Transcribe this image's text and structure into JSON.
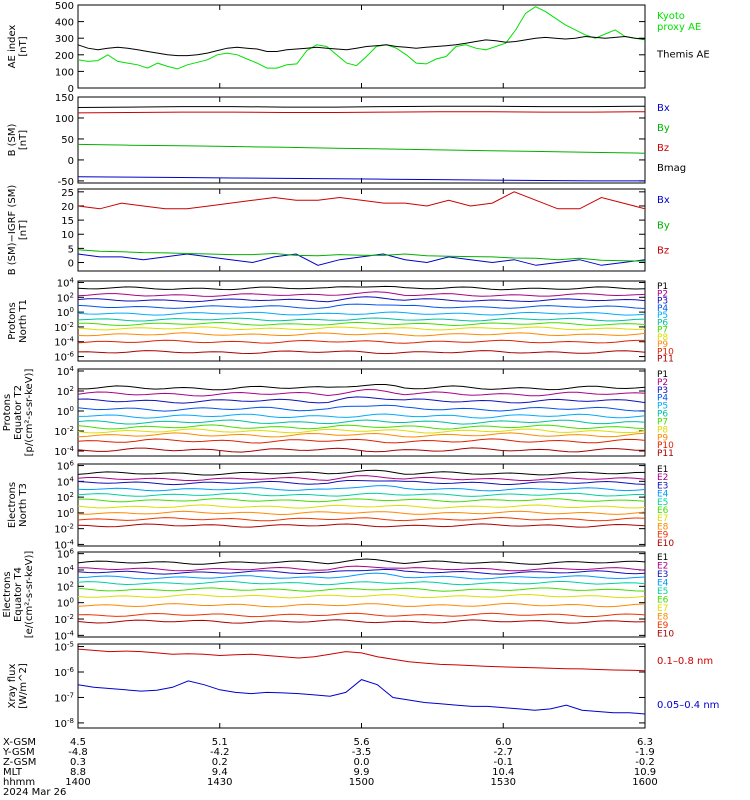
{
  "chart_data": [
    {
      "type": "line",
      "ylabel": "AE index\n[nT]",
      "ylim": [
        0,
        500
      ],
      "yscale": "linear",
      "yticks": [
        "0",
        "100",
        "200",
        "300",
        "400",
        "500"
      ],
      "yticks_v": [
        0,
        100,
        200,
        300,
        400,
        500
      ],
      "series": [
        {
          "name": "Kyoto\nproxy AE",
          "color": "#00e000",
          "values": [
            170,
            160,
            165,
            200,
            160,
            150,
            140,
            120,
            150,
            130,
            115,
            140,
            155,
            170,
            200,
            210,
            200,
            175,
            150,
            120,
            120,
            140,
            145,
            225,
            260,
            250,
            200,
            150,
            135,
            190,
            250,
            260,
            240,
            200,
            150,
            145,
            175,
            190,
            250,
            260,
            240,
            230,
            250,
            270,
            350,
            450,
            490,
            460,
            420,
            380,
            350,
            320,
            300,
            325,
            350,
            310,
            300,
            290
          ]
        },
        {
          "name": "Themis AE",
          "color": "#000000",
          "values": [
            260,
            240,
            230,
            240,
            245,
            240,
            230,
            220,
            210,
            200,
            195,
            195,
            200,
            210,
            225,
            240,
            245,
            240,
            235,
            220,
            220,
            230,
            235,
            240,
            245,
            240,
            235,
            230,
            240,
            250,
            255,
            260,
            250,
            245,
            240,
            245,
            250,
            255,
            260,
            270,
            280,
            290,
            285,
            275,
            280,
            290,
            300,
            305,
            300,
            295,
            300,
            310,
            305,
            300,
            305,
            310,
            300,
            295
          ]
        }
      ]
    },
    {
      "type": "line",
      "ylabel": "B (SM)\n[nT]",
      "ylim": [
        -55,
        150
      ],
      "yscale": "linear",
      "yticks": [
        "-50",
        "0",
        "50",
        "100",
        "150"
      ],
      "yticks_v": [
        -50,
        0,
        50,
        100,
        150
      ],
      "series": [
        {
          "name": "Bx",
          "color": "#0000cc",
          "values": [
            -40,
            -41,
            -42,
            -43,
            -44,
            -45,
            -46,
            -47,
            -48,
            -49,
            -50,
            -50
          ]
        },
        {
          "name": "By",
          "color": "#00b000",
          "values": [
            37,
            35,
            34,
            32,
            30,
            28,
            26,
            24,
            22,
            20,
            18,
            16
          ]
        },
        {
          "name": "Bz",
          "color": "#cc0000",
          "values": [
            112,
            113,
            114,
            114,
            113,
            113,
            114,
            115,
            115,
            114,
            114,
            115
          ]
        },
        {
          "name": "Bmag",
          "color": "#000000",
          "values": [
            125,
            126,
            127,
            127,
            126,
            126,
            127,
            128,
            128,
            127,
            127,
            128
          ]
        }
      ]
    },
    {
      "type": "line",
      "ylabel": "B (SM)−IGRF (SM)\n[nT]",
      "ylim": [
        -3,
        26
      ],
      "yscale": "linear",
      "yticks": [
        "0",
        "5",
        "10",
        "15",
        "20",
        "25"
      ],
      "yticks_v": [
        0,
        5,
        10,
        15,
        20,
        25
      ],
      "series": [
        {
          "name": "Bx",
          "color": "#0000cc",
          "values": [
            3,
            2,
            2,
            1,
            2,
            3,
            2,
            1,
            0,
            2,
            3,
            -1,
            1,
            2,
            3,
            1,
            0,
            2,
            1,
            0,
            1,
            -1,
            0,
            1,
            -1,
            0,
            1
          ]
        },
        {
          "name": "By",
          "color": "#00b000",
          "values": [
            4.5,
            4,
            3.8,
            3.5,
            3.4,
            3.2,
            3,
            2.8,
            2.8,
            3.2,
            2.5,
            2.4,
            2.8,
            2.6,
            2.5,
            3,
            2.4,
            2.2,
            2.1,
            2,
            1.6,
            1.5,
            1,
            1.5,
            0.8,
            0.6,
            0.5
          ]
        },
        {
          "name": "Bz",
          "color": "#cc0000",
          "values": [
            20,
            19,
            21,
            20,
            19,
            19,
            20,
            21,
            22,
            23,
            22,
            22,
            23,
            22,
            21,
            21,
            20,
            22,
            20,
            21,
            25,
            22,
            19,
            19,
            23,
            21,
            19
          ]
        }
      ]
    },
    {
      "type": "line",
      "ylabel": "Protons\nNorth T1",
      "yscale": "log",
      "ylim": [
        -6.6,
        4.2
      ],
      "yticks": [
        "10^-6",
        "10^-4",
        "10^-2",
        "10^0",
        "10^2",
        "10^4"
      ],
      "yticks_v": [
        -6,
        -4,
        -2,
        0,
        2,
        4
      ],
      "series": [
        {
          "name": "P1",
          "color": "#000000",
          "base": 3.2
        },
        {
          "name": "P2",
          "color": "#aa0088",
          "base": 2.3
        },
        {
          "name": "P3",
          "color": "#1010bb",
          "base": 1.6
        },
        {
          "name": "P4",
          "color": "#0055ee",
          "base": 0.7
        },
        {
          "name": "P5",
          "color": "#00aaff",
          "base": -0.2
        },
        {
          "name": "P6",
          "color": "#00c0a0",
          "base": -1.0
        },
        {
          "name": "P7",
          "color": "#44dd00",
          "base": -1.6
        },
        {
          "name": "P8",
          "color": "#dddd00",
          "base": -2.2
        },
        {
          "name": "P9",
          "color": "#ff8800",
          "base": -3.0
        },
        {
          "name": "P10",
          "color": "#dd2200",
          "base": -4.0
        },
        {
          "name": "P11",
          "color": "#aa0000",
          "base": -5.4
        }
      ]
    },
    {
      "type": "line",
      "ylabel": "Protons\nEquator T2\n[p/(cm²-s-sr-keV)]",
      "yscale": "log",
      "ylim": [
        -4.5,
        4.2
      ],
      "yticks": [
        "10^-4",
        "10^-2",
        "10^0",
        "10^2",
        "10^4"
      ],
      "yticks_v": [
        -4,
        -2,
        0,
        2,
        4
      ],
      "series": [
        {
          "name": "P1",
          "color": "#000000",
          "base": 2.3
        },
        {
          "name": "P2",
          "color": "#aa0088",
          "base": 1.7
        },
        {
          "name": "P3",
          "color": "#1010bb",
          "base": 1.0
        },
        {
          "name": "P4",
          "color": "#0055ee",
          "base": 0.2
        },
        {
          "name": "P5",
          "color": "#00aaff",
          "base": -0.5
        },
        {
          "name": "P6",
          "color": "#00c0a0",
          "base": -1.1
        },
        {
          "name": "P7",
          "color": "#44dd00",
          "base": -1.6
        },
        {
          "name": "P8",
          "color": "#dddd00",
          "base": -2.0
        },
        {
          "name": "P9",
          "color": "#ff8800",
          "base": -2.4
        },
        {
          "name": "P10",
          "color": "#dd2200",
          "base": -3.0
        },
        {
          "name": "P11",
          "color": "#aa0000",
          "base": -3.9
        }
      ]
    },
    {
      "type": "line",
      "ylabel": "Electrons\nNorth T3",
      "yscale": "log",
      "ylim": [
        -4.2,
        6.2
      ],
      "yticks": [
        "10^-4",
        "10^-2",
        "10^0",
        "10^2",
        "10^4",
        "10^6"
      ],
      "yticks_v": [
        -4,
        -2,
        0,
        2,
        4,
        6
      ],
      "series": [
        {
          "name": "E1",
          "color": "#000000",
          "base": 5.0
        },
        {
          "name": "E2",
          "color": "#aa0088",
          "base": 4.3
        },
        {
          "name": "E3",
          "color": "#1010bb",
          "base": 3.8
        },
        {
          "name": "E4",
          "color": "#0099ff",
          "base": 3.0
        },
        {
          "name": "E5",
          "color": "#00d0a0",
          "base": 2.3
        },
        {
          "name": "E6",
          "color": "#44dd00",
          "base": 1.6
        },
        {
          "name": "E7",
          "color": "#dddd00",
          "base": 0.8
        },
        {
          "name": "E8",
          "color": "#ff8800",
          "base": 0.0
        },
        {
          "name": "E9",
          "color": "#ee3300",
          "base": -0.8
        },
        {
          "name": "E10",
          "color": "#aa0000",
          "base": -1.6
        }
      ]
    },
    {
      "type": "line",
      "ylabel": "Electrons\nEquator T4\n[e/(cm²-s-sr-keV)]",
      "yscale": "log",
      "ylim": [
        -4.2,
        6.2
      ],
      "yticks": [
        "10^-4",
        "10^-2",
        "10^0",
        "10^2",
        "10^4",
        "10^6"
      ],
      "yticks_v": [
        -4,
        -2,
        0,
        2,
        4,
        6
      ],
      "series": [
        {
          "name": "E1",
          "color": "#000000",
          "base": 4.9
        },
        {
          "name": "E2",
          "color": "#aa0088",
          "base": 4.1
        },
        {
          "name": "E3",
          "color": "#1010bb",
          "base": 3.7
        },
        {
          "name": "E4",
          "color": "#0099ff",
          "base": 3.1
        },
        {
          "name": "E5",
          "color": "#00d0a0",
          "base": 2.4
        },
        {
          "name": "E6",
          "color": "#44dd00",
          "base": 1.6
        },
        {
          "name": "E7",
          "color": "#dddd00",
          "base": 0.8
        },
        {
          "name": "E8",
          "color": "#ff8800",
          "base": -0.3
        },
        {
          "name": "E9",
          "color": "#ee3300",
          "base": -1.5
        },
        {
          "name": "E10",
          "color": "#aa0000",
          "base": -2.3
        }
      ]
    },
    {
      "type": "line",
      "ylabel": "Xray flux\n[W/m^2]",
      "yscale": "log",
      "ylim": [
        -8.2,
        -4.9
      ],
      "yticks": [
        "10^-8",
        "10^-7",
        "10^-6",
        "10^-5"
      ],
      "yticks_v": [
        -8,
        -7,
        -6,
        -5
      ],
      "series": [
        {
          "name": "0.1–0.8 nm",
          "color": "#cc0000",
          "values": [
            -5.1,
            -5.15,
            -5.2,
            -5.18,
            -5.2,
            -5.25,
            -5.3,
            -5.28,
            -5.3,
            -5.35,
            -5.32,
            -5.3,
            -5.35,
            -5.4,
            -5.45,
            -5.4,
            -5.3,
            -5.2,
            -5.25,
            -5.4,
            -5.5,
            -5.6,
            -5.65,
            -5.7,
            -5.72,
            -5.75,
            -5.78,
            -5.8,
            -5.82,
            -5.83,
            -5.85,
            -5.87,
            -5.88,
            -5.9,
            -5.92,
            -5.93,
            -5.95
          ]
        },
        {
          "name": "0.05–0.4 nm",
          "color": "#0000cc",
          "values": [
            -6.5,
            -6.6,
            -6.65,
            -6.7,
            -6.75,
            -6.72,
            -6.6,
            -6.35,
            -6.5,
            -6.7,
            -6.8,
            -6.85,
            -6.8,
            -6.82,
            -6.85,
            -6.9,
            -6.95,
            -6.8,
            -6.3,
            -6.5,
            -7.0,
            -7.1,
            -7.2,
            -7.25,
            -7.3,
            -7.35,
            -7.35,
            -7.4,
            -7.45,
            -7.5,
            -7.45,
            -7.3,
            -7.5,
            -7.55,
            -7.6,
            -7.6,
            -7.65
          ]
        }
      ]
    }
  ],
  "footer": {
    "row_labels": [
      "X-GSM",
      "Y-GSM",
      "Z-GSM",
      "MLT",
      "hhmm",
      "2024 Mar 26"
    ],
    "columns": [
      [
        "4.5",
        "-4.8",
        "0.3",
        "8.8",
        "1400"
      ],
      [
        "5.1",
        "-4.2",
        "0.2",
        "9.4",
        "1430"
      ],
      [
        "5.6",
        "-3.5",
        "0.0",
        "9.9",
        "1500"
      ],
      [
        "6.0",
        "-2.7",
        "-0.1",
        "10.4",
        "1530"
      ],
      [
        "6.3",
        "-1.9",
        "-0.2",
        "10.9",
        "1600"
      ]
    ]
  }
}
